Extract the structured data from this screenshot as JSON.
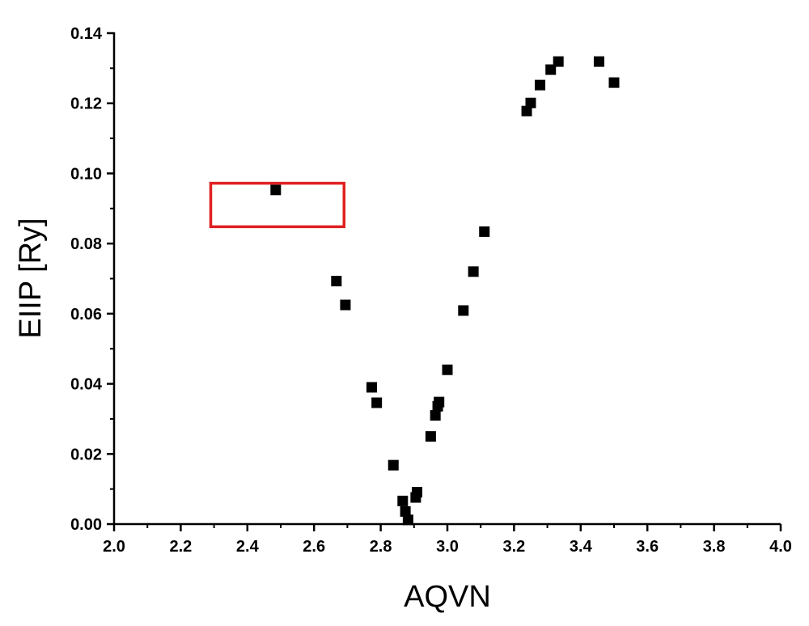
{
  "chart_data": {
    "type": "scatter",
    "xlabel": "AQVN",
    "ylabel": "EIIP [Ry]",
    "xlim": [
      2.0,
      4.0
    ],
    "ylim": [
      0.0,
      0.14
    ],
    "x_ticks": [
      2.0,
      2.2,
      2.4,
      2.6,
      2.8,
      3.0,
      3.2,
      3.4,
      3.6,
      3.8,
      4.0
    ],
    "x_tick_labels": [
      "2.0",
      "2.2",
      "2.4",
      "2.6",
      "2.8",
      "3.0",
      "3.2",
      "3.4",
      "3.6",
      "3.8",
      "4.0"
    ],
    "y_ticks": [
      0.0,
      0.02,
      0.04,
      0.06,
      0.08,
      0.1,
      0.12,
      0.14
    ],
    "y_tick_labels": [
      "0.00",
      "0.02",
      "0.04",
      "0.06",
      "0.08",
      "0.10",
      "0.12",
      "0.14"
    ],
    "grid": false,
    "marker": "square",
    "marker_color": "#000000",
    "points": [
      {
        "x": 2.485,
        "y": 0.0953
      },
      {
        "x": 2.667,
        "y": 0.0693
      },
      {
        "x": 2.694,
        "y": 0.0625
      },
      {
        "x": 2.773,
        "y": 0.039
      },
      {
        "x": 2.788,
        "y": 0.0346
      },
      {
        "x": 2.838,
        "y": 0.0168
      },
      {
        "x": 2.866,
        "y": 0.0066
      },
      {
        "x": 2.874,
        "y": 0.0036
      },
      {
        "x": 2.882,
        "y": 0.0012
      },
      {
        "x": 2.905,
        "y": 0.0076
      },
      {
        "x": 2.909,
        "y": 0.0091
      },
      {
        "x": 2.95,
        "y": 0.025
      },
      {
        "x": 2.964,
        "y": 0.031
      },
      {
        "x": 2.971,
        "y": 0.0336
      },
      {
        "x": 2.975,
        "y": 0.0348
      },
      {
        "x": 3.0,
        "y": 0.044
      },
      {
        "x": 3.048,
        "y": 0.0609
      },
      {
        "x": 3.078,
        "y": 0.072
      },
      {
        "x": 3.111,
        "y": 0.0834
      },
      {
        "x": 3.238,
        "y": 0.1178
      },
      {
        "x": 3.25,
        "y": 0.1201
      },
      {
        "x": 3.278,
        "y": 0.1252
      },
      {
        "x": 3.31,
        "y": 0.1296
      },
      {
        "x": 3.333,
        "y": 0.1319
      },
      {
        "x": 3.455,
        "y": 0.1319
      },
      {
        "x": 3.5,
        "y": 0.1259
      }
    ],
    "annotations": [
      {
        "type": "rectangle",
        "color": "#e02020",
        "x_range": [
          2.29,
          2.69
        ],
        "y_range": [
          0.0848,
          0.0972
        ]
      }
    ]
  }
}
